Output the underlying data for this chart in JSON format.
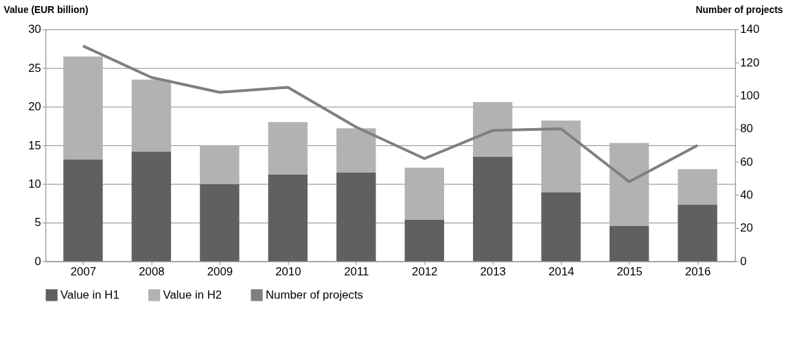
{
  "chart_data": {
    "type": "bar",
    "stacked": true,
    "categories": [
      "2007",
      "2008",
      "2009",
      "2010",
      "2011",
      "2012",
      "2013",
      "2014",
      "2015",
      "2016"
    ],
    "ylabel": "Value (EUR billion)",
    "y2label": "Number of projects",
    "ylim": [
      0,
      30
    ],
    "yticks": [
      0,
      5,
      10,
      15,
      20,
      25,
      30
    ],
    "y2lim": [
      0,
      140
    ],
    "y2ticks": [
      0,
      20,
      40,
      60,
      80,
      100,
      120,
      140
    ],
    "grid": "y",
    "legend": "bottom",
    "series": [
      {
        "name": "Value in H1",
        "color": "#606060",
        "values": [
          13.2,
          14.2,
          10.0,
          11.2,
          11.5,
          5.4,
          13.5,
          8.9,
          4.6,
          7.3
        ]
      },
      {
        "name": "Value in H2",
        "color": "#b2b2b2",
        "values": [
          13.3,
          9.3,
          5.0,
          6.8,
          5.7,
          6.7,
          7.1,
          9.3,
          10.7,
          4.6
        ]
      },
      {
        "name": "Number of projects",
        "color": "#7f7f7f",
        "type": "line",
        "axis": "y2",
        "values": [
          130,
          111,
          102,
          105,
          81,
          62,
          79,
          80,
          48,
          70
        ]
      }
    ]
  }
}
